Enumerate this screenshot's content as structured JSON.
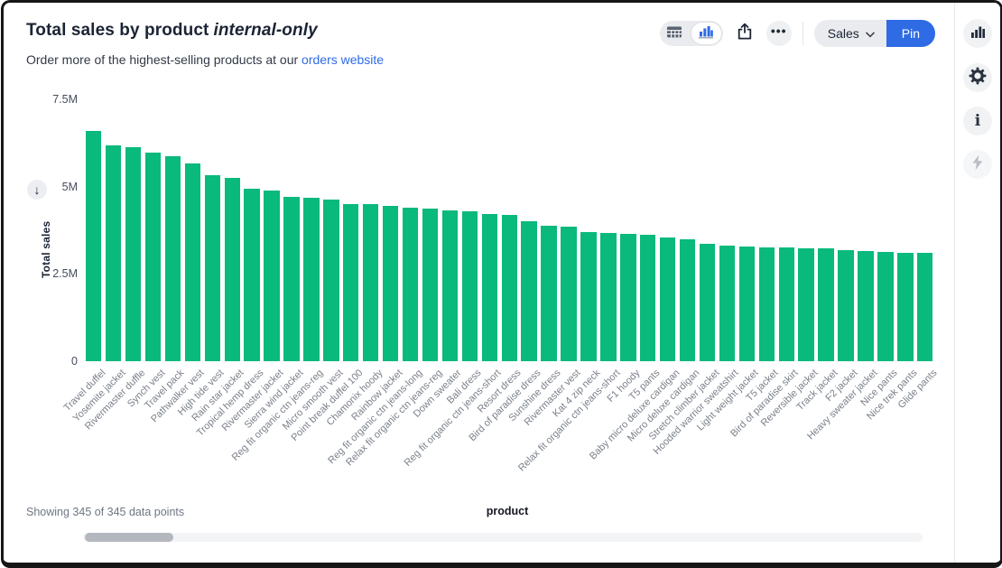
{
  "header": {
    "title": "Total sales by product",
    "title_suffix_italic": "internal-only",
    "subtitle_prefix": "Order more of the highest-selling products at our ",
    "subtitle_link": "orders website"
  },
  "toolbar": {
    "view_toggle": {
      "options": [
        "table-view",
        "chart-view"
      ],
      "selected": "chart-view"
    },
    "more_label": "•••",
    "sales_label": "Sales",
    "pin_label": "Pin"
  },
  "sidebar": {
    "icons": [
      "bar-chart",
      "gear",
      "info",
      "lightning"
    ]
  },
  "footer": {
    "showing_text": "Showing 345 of 345 data points"
  },
  "icons": {
    "sort_arrow": "↓"
  },
  "colors": {
    "bar_green": "#0ab97c",
    "accent_blue": "#2e6be5",
    "link_blue": "#2e6be5",
    "title_dark": "#1b2434",
    "muted_gray": "#7a808a"
  },
  "chart_data": {
    "type": "bar",
    "title": "Total sales by product internal-only",
    "xlabel": "product",
    "ylabel": "Total sales",
    "sort": "descending",
    "grid": false,
    "legend": false,
    "ylim": [
      0,
      7500000
    ],
    "yticks": [
      {
        "label": "7.5M",
        "value": 7500000
      },
      {
        "label": "5M",
        "value": 5000000
      },
      {
        "label": "2.5M",
        "value": 2500000
      },
      {
        "label": "0",
        "value": 0
      }
    ],
    "total_points": 345,
    "categories": [
      "Travel duffel",
      "Yosemite jacket",
      "Rivermaster duffle",
      "Synch vest",
      "Travel pack",
      "Pathwalker vest",
      "High tide vest",
      "Rain star jacket",
      "Tropical hemp dress",
      "Rivermaster jacket",
      "Sierra wind jacket",
      "Reg fit organic ctn jeans-reg",
      "Micro smooth vest",
      "Point break duffel 100",
      "Chamonix hoody",
      "Rainbow jacket",
      "Reg fit organic ctn jeans-long",
      "Relax fit organic ctn jeans-reg",
      "Down sweater",
      "Bali dress",
      "Reg fit organic ctn jeans-short",
      "Resort dress",
      "Bird of paradise dress",
      "Sunshine dress",
      "Rivermaster vest",
      "Kat 4 zip neck",
      "Relax fit organic ctn jeans-short",
      "F1 hoody",
      "T5 pants",
      "Baby micro deluxe cardigan",
      "Micro deluxe cardigan",
      "Stretch climber jacket",
      "Hooded warrior sweatshirt",
      "Light weight jacket",
      "T5 jacket",
      "Bird of paradise skirt",
      "Reversible jacket",
      "Track jacket",
      "F2 jacket",
      "Heavy sweater jacket",
      "Nice pants",
      "Nice trek pants",
      "Glide pants"
    ],
    "values": [
      6590000,
      6180000,
      6140000,
      5970000,
      5870000,
      5660000,
      5340000,
      5250000,
      4930000,
      4900000,
      4710000,
      4690000,
      4630000,
      4510000,
      4490000,
      4450000,
      4400000,
      4370000,
      4330000,
      4300000,
      4210000,
      4200000,
      4020000,
      3870000,
      3860000,
      3690000,
      3680000,
      3650000,
      3610000,
      3550000,
      3500000,
      3350000,
      3320000,
      3290000,
      3270000,
      3250000,
      3240000,
      3230000,
      3190000,
      3160000,
      3120000,
      3110000,
      3100000
    ]
  }
}
